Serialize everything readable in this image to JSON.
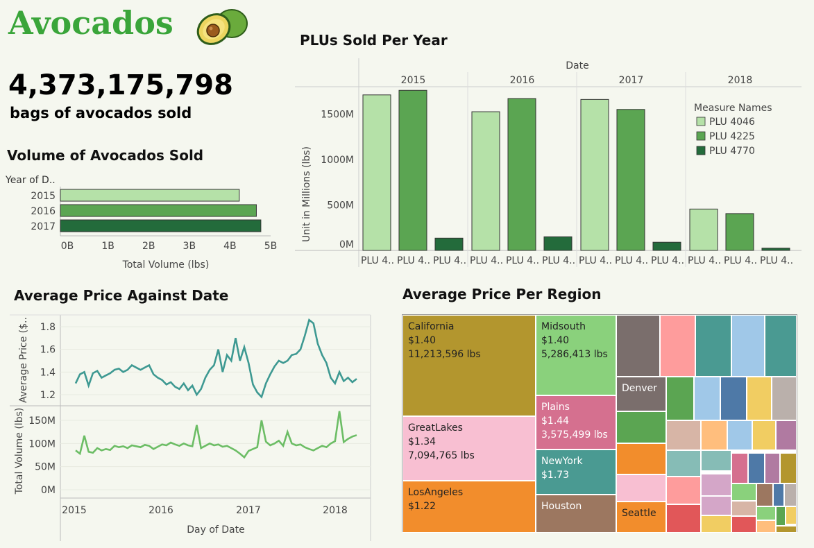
{
  "header": {
    "title": "Avocados",
    "total_bags": "4,373,175,798",
    "total_caption": "bags of avocados sold"
  },
  "colors": {
    "light": "#b5e1a8",
    "mid": "#5ba552",
    "dark": "#236b3b",
    "price_line": "#3e9992",
    "volume_line": "#6cbd65"
  },
  "plu_chart": {
    "title": "PLUs Sold Per Year",
    "column_header": "Date",
    "ylabel": "Unit in Millions (lbs)",
    "legend_title": "Measure Names",
    "x_tick_label": "PLU 4..",
    "y_ticks": [
      "0M",
      "500M",
      "1000M",
      "1500M"
    ]
  },
  "volume_chart": {
    "title": "Volume of Avocados Sold",
    "row_header": "Year of D..",
    "xlabel": "Total Volume (lbs)",
    "x_ticks": [
      "0B",
      "1B",
      "2B",
      "3B",
      "4B",
      "5B"
    ]
  },
  "price_chart": {
    "title": "Average Price Against Date",
    "ylabel_price": "Average Price ($..",
    "ylabel_volume": "Total Volume (lbs)",
    "xlabel": "Day of Date",
    "price_ticks": [
      "1.2",
      "1.4",
      "1.6",
      "1.8"
    ],
    "volume_ticks": [
      "0M",
      "50M",
      "100M",
      "150M"
    ],
    "x_ticks": [
      "2015",
      "2016",
      "2017",
      "2018"
    ]
  },
  "treemap": {
    "title": "Average Price Per Region",
    "regions": [
      {
        "name": "California",
        "price": "$1.40",
        "volume": "11,213,596 lbs",
        "color": "#b3962e"
      },
      {
        "name": "GreatLakes",
        "price": "$1.34",
        "volume": "7,094,765 lbs",
        "color": "#f8bfd2"
      },
      {
        "name": "LosAngeles",
        "price": "$1.22",
        "volume": "",
        "color": "#f28d2c"
      },
      {
        "name": "Midsouth",
        "price": "$1.40",
        "volume": "5,286,413 lbs",
        "color": "#8ad17c"
      },
      {
        "name": "Plains",
        "price": "$1.44",
        "volume": "3,575,499 lbs",
        "color": "#d5708f"
      },
      {
        "name": "NewYork",
        "price": "$1.73",
        "volume": "",
        "color": "#4a9a92"
      },
      {
        "name": "Houston",
        "price": "",
        "volume": "",
        "color": "#9c7760"
      },
      {
        "name": "Denver",
        "price": "",
        "volume": "",
        "color": "#7a6e6c"
      },
      {
        "name": "Seattle",
        "price": "",
        "volume": "",
        "color": "#f28d2c"
      }
    ]
  },
  "chart_data": [
    {
      "type": "bar",
      "title": "PLUs Sold Per Year",
      "categories": [
        "2015",
        "2016",
        "2017",
        "2018"
      ],
      "series": [
        {
          "name": "PLU 4046",
          "values": [
            1710,
            1525,
            1660,
            455
          ]
        },
        {
          "name": "PLU 4225",
          "values": [
            1760,
            1670,
            1550,
            405
          ]
        },
        {
          "name": "PLU 4770",
          "values": [
            135,
            150,
            90,
            25
          ]
        }
      ],
      "ylabel": "Unit in Millions (lbs)",
      "ylim": [
        0,
        1800
      ],
      "legend": "top-right"
    },
    {
      "type": "bar",
      "orientation": "horizontal",
      "title": "Volume of Avocados Sold",
      "categories": [
        "2015",
        "2016",
        "2017"
      ],
      "values": [
        4.4,
        4.82,
        4.93
      ],
      "xlabel": "Total Volume (lbs)",
      "xlim": [
        0,
        5
      ],
      "unit": "B"
    },
    {
      "type": "line",
      "title": "Average Price Against Date",
      "x_start": "2015-01",
      "x_step": "2 weeks",
      "series": [
        {
          "name": "Average Price",
          "values": [
            1.3,
            1.38,
            1.4,
            1.28,
            1.39,
            1.41,
            1.35,
            1.37,
            1.39,
            1.42,
            1.43,
            1.4,
            1.42,
            1.46,
            1.44,
            1.42,
            1.44,
            1.46,
            1.38,
            1.35,
            1.33,
            1.29,
            1.31,
            1.27,
            1.25,
            1.3,
            1.24,
            1.28,
            1.2,
            1.25,
            1.35,
            1.42,
            1.46,
            1.6,
            1.4,
            1.55,
            1.5,
            1.7,
            1.5,
            1.62,
            1.48,
            1.29,
            1.22,
            1.18,
            1.3,
            1.38,
            1.45,
            1.5,
            1.48,
            1.5,
            1.55,
            1.56,
            1.6,
            1.72,
            1.86,
            1.83,
            1.65,
            1.55,
            1.48,
            1.35,
            1.3,
            1.4,
            1.32,
            1.35,
            1.31,
            1.34
          ]
        },
        {
          "name": "Total Volume",
          "values": [
            85,
            78,
            117,
            82,
            80,
            90,
            85,
            88,
            86,
            95,
            92,
            94,
            90,
            96,
            94,
            92,
            97,
            95,
            88,
            93,
            98,
            96,
            102,
            98,
            95,
            100,
            96,
            94,
            140,
            90,
            95,
            100,
            96,
            98,
            93,
            95,
            90,
            85,
            78,
            70,
            84,
            88,
            92,
            150,
            104,
            96,
            100,
            106,
            95,
            125,
            100,
            96,
            98,
            92,
            88,
            85,
            90,
            95,
            92,
            100,
            105,
            170,
            103,
            110,
            115,
            118
          ]
        }
      ],
      "ylabel": "Average Price ($..",
      "xlabel": "Day of Date",
      "x_ticks": [
        "2015",
        "2016",
        "2017",
        "2018"
      ]
    },
    {
      "type": "treemap",
      "title": "Average Price Per Region",
      "items": [
        {
          "label": "California",
          "price": 1.4,
          "volume": 11213596
        },
        {
          "label": "GreatLakes",
          "price": 1.34,
          "volume": 7094765
        },
        {
          "label": "LosAngeles",
          "price": 1.22
        },
        {
          "label": "Midsouth",
          "price": 1.4,
          "volume": 5286413
        },
        {
          "label": "Plains",
          "price": 1.44,
          "volume": 3575499
        },
        {
          "label": "NewYork",
          "price": 1.73
        },
        {
          "label": "Houston"
        },
        {
          "label": "Denver"
        },
        {
          "label": "Seattle"
        }
      ]
    }
  ]
}
